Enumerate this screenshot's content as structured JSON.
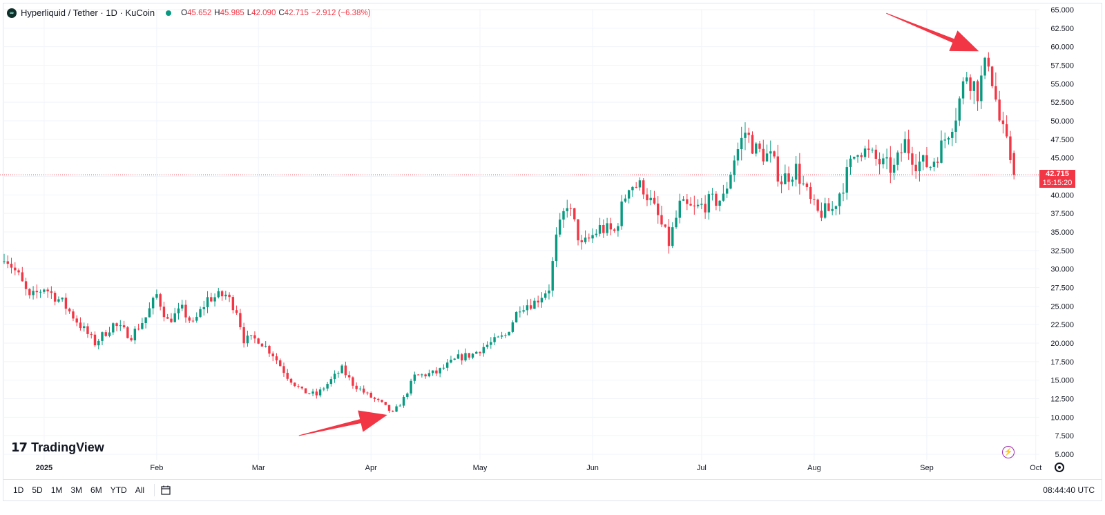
{
  "header": {
    "title": "Hyperliquid / Tether · 1D · KuCoin",
    "ohlc": {
      "o_label": "O",
      "o": "45.652",
      "h_label": "H",
      "h": "45.985",
      "l_label": "L",
      "l": "42.090",
      "c_label": "C",
      "c": "42.715",
      "change": "−2.912 (−6.38%)"
    }
  },
  "price_tag": {
    "price": "42.715",
    "countdown": "15:15:20"
  },
  "brand": "TradingView",
  "timeframes": [
    "1D",
    "5D",
    "1M",
    "3M",
    "6M",
    "YTD",
    "All"
  ],
  "clock": "08:44:40 UTC",
  "colors": {
    "up": "#089981",
    "down": "#f23645",
    "grid": "#f0f3fa",
    "arrow": "#f23645"
  },
  "icons": {
    "calendar": "calendar-range-icon",
    "settings": "settings-icon",
    "bolt": "bolt-icon"
  },
  "chart_data": {
    "type": "candlestick",
    "x_axis_labels": [
      "2025",
      "Feb",
      "Mar",
      "Apr",
      "May",
      "Jun",
      "Jul",
      "Aug",
      "Sep",
      "Oct"
    ],
    "y_axis_labels": [
      "65.000",
      "62.500",
      "60.000",
      "57.500",
      "55.000",
      "52.500",
      "50.000",
      "47.500",
      "45.000",
      "42.500",
      "40.000",
      "37.500",
      "35.000",
      "32.500",
      "30.000",
      "27.500",
      "25.000",
      "22.500",
      "20.000",
      "17.500",
      "15.000",
      "12.500",
      "10.000",
      "7.500",
      "5.000"
    ],
    "ylim": [
      5,
      65
    ],
    "x_domain": [
      "2024-12-21",
      "2025-10-02"
    ],
    "grid": true,
    "current_price_line": 42.715,
    "annotations": [
      {
        "type": "arrow",
        "target_date": "2025-04-07",
        "target_price": 10.5
      },
      {
        "type": "arrow",
        "target_date": "2025-09-18",
        "target_price": 59.2
      }
    ],
    "anchors": [
      [
        "2024-12-21",
        32.0
      ],
      [
        "2024-12-25",
        29.0
      ],
      [
        "2024-12-28",
        26.0
      ],
      [
        "2025-01-01",
        27.5
      ],
      [
        "2025-01-06",
        25.5
      ],
      [
        "2025-01-10",
        23.0
      ],
      [
        "2025-01-15",
        20.0
      ],
      [
        "2025-01-20",
        22.5
      ],
      [
        "2025-01-25",
        21.0
      ],
      [
        "2025-01-29",
        23.5
      ],
      [
        "2025-02-01",
        26.5
      ],
      [
        "2025-02-04",
        23.0
      ],
      [
        "2025-02-08",
        24.5
      ],
      [
        "2025-02-11",
        22.5
      ],
      [
        "2025-02-15",
        26.0
      ],
      [
        "2025-02-20",
        26.5
      ],
      [
        "2025-02-23",
        24.5
      ],
      [
        "2025-02-25",
        20.5
      ],
      [
        "2025-03-01",
        20.5
      ],
      [
        "2025-03-05",
        18.5
      ],
      [
        "2025-03-09",
        15.5
      ],
      [
        "2025-03-13",
        13.5
      ],
      [
        "2025-03-17",
        13.0
      ],
      [
        "2025-03-20",
        14.5
      ],
      [
        "2025-03-24",
        16.5
      ],
      [
        "2025-03-27",
        14.5
      ],
      [
        "2025-03-31",
        13.0
      ],
      [
        "2025-04-04",
        11.8
      ],
      [
        "2025-04-07",
        10.5
      ],
      [
        "2025-04-10",
        12.5
      ],
      [
        "2025-04-13",
        15.5
      ],
      [
        "2025-04-19",
        16.0
      ],
      [
        "2025-04-25",
        18.0
      ],
      [
        "2025-04-29",
        18.5
      ],
      [
        "2025-05-02",
        19.5
      ],
      [
        "2025-05-08",
        21.0
      ],
      [
        "2025-05-12",
        25.0
      ],
      [
        "2025-05-16",
        25.5
      ],
      [
        "2025-05-20",
        27.5
      ],
      [
        "2025-05-22",
        34.0
      ],
      [
        "2025-05-25",
        39.0
      ],
      [
        "2025-05-29",
        33.0
      ],
      [
        "2025-06-03",
        35.5
      ],
      [
        "2025-06-07",
        35.0
      ],
      [
        "2025-06-11",
        41.5
      ],
      [
        "2025-06-15",
        41.0
      ],
      [
        "2025-06-19",
        37.0
      ],
      [
        "2025-06-22",
        33.5
      ],
      [
        "2025-06-25",
        38.5
      ],
      [
        "2025-06-29",
        38.0
      ],
      [
        "2025-07-03",
        39.0
      ],
      [
        "2025-07-07",
        39.5
      ],
      [
        "2025-07-10",
        45.0
      ],
      [
        "2025-07-13",
        48.5
      ],
      [
        "2025-07-16",
        46.0
      ],
      [
        "2025-07-20",
        45.0
      ],
      [
        "2025-07-23",
        42.0
      ],
      [
        "2025-07-27",
        43.5
      ],
      [
        "2025-07-31",
        39.0
      ],
      [
        "2025-08-02",
        37.5
      ],
      [
        "2025-08-06",
        38.0
      ],
      [
        "2025-08-09",
        41.5
      ],
      [
        "2025-08-13",
        46.5
      ],
      [
        "2025-08-16",
        45.5
      ],
      [
        "2025-08-20",
        44.0
      ],
      [
        "2025-08-23",
        43.5
      ],
      [
        "2025-08-26",
        47.0
      ],
      [
        "2025-08-29",
        44.5
      ],
      [
        "2025-09-02",
        44.0
      ],
      [
        "2025-09-05",
        46.5
      ],
      [
        "2025-09-09",
        51.0
      ],
      [
        "2025-09-12",
        56.5
      ],
      [
        "2025-09-15",
        54.0
      ],
      [
        "2025-09-18",
        58.5
      ],
      [
        "2025-09-21",
        50.0
      ],
      [
        "2025-09-24",
        45.0
      ],
      [
        "2025-09-25",
        42.715
      ]
    ]
  }
}
